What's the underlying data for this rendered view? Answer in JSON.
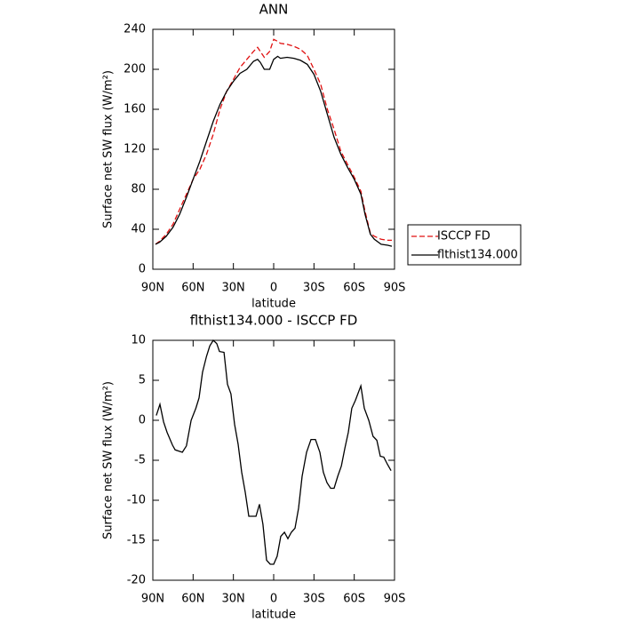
{
  "chart_data": [
    {
      "type": "line",
      "title": "ANN",
      "xlabel": "latitude",
      "ylabel": "Surface net SW flux (W/m²)",
      "xlim": [
        90,
        -90
      ],
      "xticks": [
        {
          "value": 90,
          "label": "90N"
        },
        {
          "value": 60,
          "label": "60N"
        },
        {
          "value": 30,
          "label": "30N"
        },
        0,
        {
          "value": -30,
          "label": "30S"
        },
        {
          "value": -60,
          "label": "60S"
        },
        {
          "value": -90,
          "label": "90S"
        }
      ],
      "ylim": [
        0,
        240
      ],
      "yticks": [
        0,
        40,
        80,
        120,
        160,
        200,
        240
      ],
      "legend": "right",
      "x": [
        88,
        85,
        80,
        75,
        70,
        65,
        60,
        55,
        50,
        45,
        40,
        35,
        30,
        25,
        20,
        15,
        12,
        10,
        7,
        3,
        0,
        -3,
        -5,
        -10,
        -15,
        -20,
        -25,
        -30,
        -35,
        -40,
        -45,
        -50,
        -55,
        -60,
        -65,
        -68,
        -72,
        -75,
        -80,
        -85,
        -88
      ],
      "series": [
        {
          "name": "ISCCP FD",
          "color": "#e01010",
          "dash": true,
          "values": [
            25,
            28,
            35,
            45,
            60,
            75,
            90,
            100,
            115,
            135,
            160,
            178,
            190,
            202,
            210,
            218,
            222,
            218,
            212,
            218,
            230,
            228,
            226,
            225,
            223,
            220,
            214,
            200,
            185,
            160,
            140,
            118,
            105,
            92,
            78,
            58,
            36,
            33,
            30,
            29,
            29
          ]
        },
        {
          "name": "flthist134.000",
          "color": "#000000",
          "dash": false,
          "values": [
            25,
            27,
            33,
            42,
            55,
            72,
            90,
            108,
            128,
            148,
            165,
            178,
            188,
            196,
            200,
            208,
            210,
            207,
            200,
            200,
            210,
            213,
            211,
            212,
            211,
            209,
            205,
            195,
            178,
            155,
            132,
            115,
            102,
            90,
            75,
            55,
            35,
            30,
            25,
            24,
            23
          ]
        }
      ]
    },
    {
      "type": "line",
      "title": "flthist134.000 - ISCCP FD",
      "xlabel": "latitude",
      "ylabel": "Surface net SW flux (W/m²)",
      "xlim": [
        90,
        -90
      ],
      "xticks": [
        {
          "value": 90,
          "label": "90N"
        },
        {
          "value": 60,
          "label": "60N"
        },
        {
          "value": 30,
          "label": "30N"
        },
        0,
        {
          "value": -30,
          "label": "30S"
        },
        {
          "value": -60,
          "label": "60S"
        },
        {
          "value": -90,
          "label": "90S"
        }
      ],
      "ylim": [
        -20,
        10
      ],
      "yticks": [
        -20,
        -15,
        -10,
        -5,
        0,
        5,
        10
      ],
      "x": [
        87.4,
        84.7,
        82,
        79.4,
        75.4,
        73.4,
        68,
        65,
        61.5,
        58,
        55.6,
        53,
        50,
        47.6,
        45,
        42.4,
        40.4,
        37,
        34.4,
        31.8,
        29.1,
        26.5,
        23.8,
        21.2,
        18.5,
        13.2,
        10.6,
        8,
        5.3,
        2.6,
        0,
        -2.6,
        -5.3,
        -8,
        -10.6,
        -13.2,
        -15.9,
        -18.5,
        -21.2,
        -24.5,
        -27.8,
        -31.1,
        -34.4,
        -37,
        -39.7,
        -42.4,
        -45,
        -47.7,
        -50.4,
        -53,
        -55.6,
        -58.2,
        -60.9,
        -64.9,
        -67.5,
        -70.8,
        -74,
        -76.8,
        -79.4,
        -82,
        -84.7,
        -87.4
      ],
      "series": [
        {
          "name": "flthist134.000",
          "color": "#000000",
          "dash": false,
          "values": [
            0.6,
            2,
            -0.2,
            -1.5,
            -3.1,
            -3.7,
            -4,
            -3.2,
            0,
            1.5,
            2.8,
            6,
            8,
            9.3,
            10,
            9.6,
            8.6,
            8.5,
            4.5,
            3.3,
            -0.5,
            -3,
            -6.5,
            -9,
            -12,
            -12,
            -10.5,
            -13,
            -17.5,
            -18,
            -18,
            -17,
            -14.5,
            -14,
            -14.8,
            -14,
            -13.5,
            -11,
            -7,
            -4,
            -2.4,
            -2.4,
            -4,
            -6.5,
            -7.8,
            -8.5,
            -8.5,
            -7,
            -5.7,
            -3.5,
            -1.5,
            1.5,
            2.5,
            4.3,
            1.5,
            0,
            -2,
            -2.5,
            -4.5,
            -4.6,
            -5.5,
            -6.3
          ]
        }
      ]
    }
  ]
}
